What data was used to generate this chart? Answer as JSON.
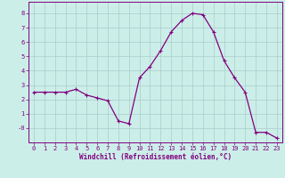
{
  "x": [
    0,
    1,
    2,
    3,
    4,
    5,
    6,
    7,
    8,
    9,
    10,
    11,
    12,
    13,
    14,
    15,
    16,
    17,
    18,
    19,
    20,
    21,
    22,
    23
  ],
  "y": [
    2.5,
    2.5,
    2.5,
    2.5,
    2.7,
    2.3,
    2.1,
    1.9,
    0.5,
    0.3,
    3.5,
    4.3,
    5.4,
    6.7,
    7.5,
    8.0,
    7.9,
    6.7,
    4.7,
    3.5,
    2.5,
    -0.3,
    -0.3,
    -0.7
  ],
  "line_color": "#800080",
  "marker": "+",
  "marker_size": 3,
  "marker_lw": 0.8,
  "bg_color": "#cceee8",
  "grid_color": "#aacccc",
  "xlabel": "Windchill (Refroidissement éolien,°C)",
  "xlabel_color": "#800080",
  "tick_color": "#800080",
  "ylim": [
    -1.0,
    8.8
  ],
  "xlim": [
    -0.5,
    23.5
  ],
  "yticks": [
    0,
    1,
    2,
    3,
    4,
    5,
    6,
    7,
    8
  ],
  "ytick_labels": [
    "-0",
    "1",
    "2",
    "3",
    "4",
    "5",
    "6",
    "7",
    "8"
  ],
  "xticks": [
    0,
    1,
    2,
    3,
    4,
    5,
    6,
    7,
    8,
    9,
    10,
    11,
    12,
    13,
    14,
    15,
    16,
    17,
    18,
    19,
    20,
    21,
    22,
    23
  ],
  "spine_color": "#800080",
  "line_width": 0.9,
  "tick_fontsize": 5.0,
  "xlabel_fontsize": 5.5
}
